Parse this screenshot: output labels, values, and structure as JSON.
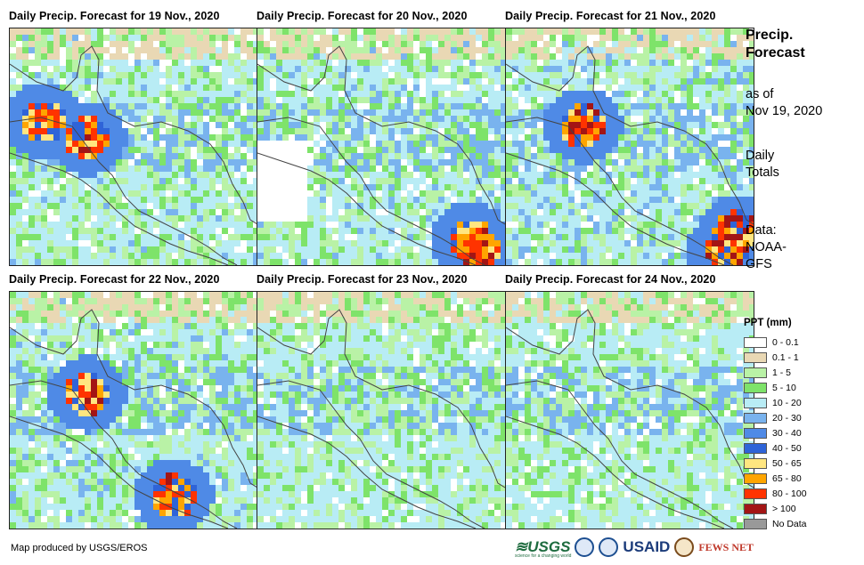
{
  "panels": [
    {
      "title": "Daily Precip. Forecast for 19 Nov., 2020",
      "intensity": 0.55,
      "seed": 19,
      "hotspots": [
        [
          0.3,
          0.45,
          0.9
        ],
        [
          0.12,
          0.38,
          0.8
        ]
      ]
    },
    {
      "title": "Daily Precip. Forecast for 20 Nov., 2020",
      "intensity": 0.6,
      "seed": 20,
      "hotspots": [
        [
          0.88,
          0.92,
          1.0
        ],
        [
          0.85,
          0.88,
          0.9
        ]
      ]
    },
    {
      "title": "Daily Precip. Forecast for 21 Nov., 2020",
      "intensity": 0.65,
      "seed": 21,
      "hotspots": [
        [
          0.3,
          0.4,
          1.0
        ],
        [
          0.88,
          0.92,
          1.0
        ],
        [
          0.92,
          0.85,
          1.0
        ]
      ]
    },
    {
      "title": "Daily Precip. Forecast for 22 Nov., 2020",
      "intensity": 0.6,
      "seed": 22,
      "hotspots": [
        [
          0.3,
          0.42,
          0.9
        ],
        [
          0.65,
          0.85,
          0.85
        ]
      ]
    },
    {
      "title": "Daily Precip. Forecast for 23 Nov., 2020",
      "intensity": 0.4,
      "seed": 23,
      "hotspots": []
    },
    {
      "title": "Daily Precip. Forecast for 24 Nov., 2020",
      "intensity": 0.45,
      "seed": 24,
      "hotspots": []
    }
  ],
  "side": {
    "title_line1": "Precip.",
    "title_line2": "Forecast",
    "asof_line1": "as of",
    "asof_line2": "Nov 19, 2020",
    "daily_line1": "Daily",
    "daily_line2": "Totals",
    "data_line1": "Data:",
    "data_line2": "NOAA-",
    "data_line3": "GFS"
  },
  "legend": {
    "title": "PPT (mm)",
    "items": [
      {
        "label": "0 - 0.1",
        "color": "#ffffff"
      },
      {
        "label": "0.1 - 1",
        "color": "#e9d8b4"
      },
      {
        "label": "1 - 5",
        "color": "#b9f2a6"
      },
      {
        "label": "5 - 10",
        "color": "#7ee36a"
      },
      {
        "label": "10 - 20",
        "color": "#b8ecf5"
      },
      {
        "label": "20 - 30",
        "color": "#79b3ee"
      },
      {
        "label": "30 - 40",
        "color": "#4f8ae6"
      },
      {
        "label": "40 - 50",
        "color": "#2f64d8"
      },
      {
        "label": "50 - 65",
        "color": "#ffe680"
      },
      {
        "label": "65 - 80",
        "color": "#ffa500"
      },
      {
        "label": "80 - 100",
        "color": "#ff3300"
      },
      {
        "label": "> 100",
        "color": "#a31515"
      },
      {
        "label": "No Data",
        "color": "#999999"
      }
    ]
  },
  "credit": "Map produced by USGS/EROS",
  "logos": {
    "usgs": "≋USGS",
    "usaid": "USAID",
    "fews": "FEWS NET",
    "usgs_tagline": "science for a changing world"
  }
}
